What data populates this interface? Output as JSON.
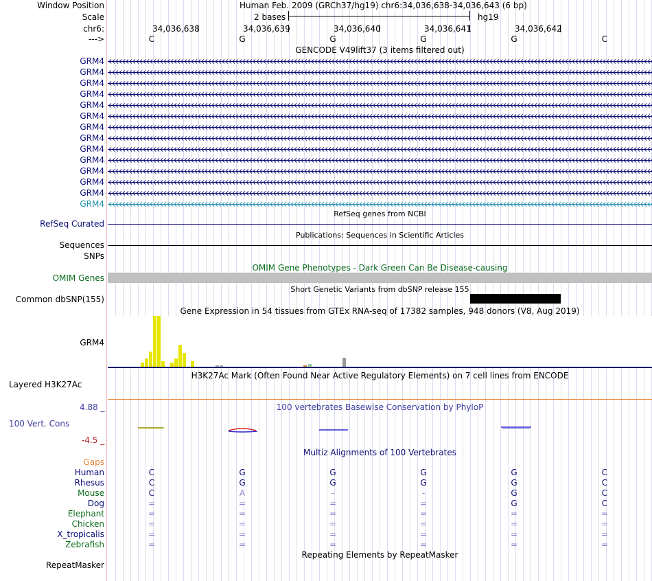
{
  "header": {
    "window_position_label": "Window Position",
    "scale_label": "Scale",
    "chrom_label": "chr6:",
    "strand_label": "--->",
    "assembly_title": "Human Feb. 2009 (GRCh37/hg19)   chr6:34,036,638-34,036,643 (6 bp)",
    "scale_text": "2 bases",
    "scale_db": "hg19",
    "positions": [
      "34,036,638",
      "34,036,639",
      "34,036,640",
      "34,036,641",
      "34,036,642"
    ],
    "bases": [
      "C",
      "G",
      "G",
      "G",
      "G",
      "C"
    ]
  },
  "gencode": {
    "title": "GENCODE V49lift37 (3 items filtered out)",
    "items": [
      "GRM4",
      "GRM4",
      "GRM4",
      "GRM4",
      "GRM4",
      "GRM4",
      "GRM4",
      "GRM4",
      "GRM4",
      "GRM4",
      "GRM4",
      "GRM4",
      "GRM4",
      "GRM4"
    ],
    "color": "#0c0c78",
    "last_color": "#1f8fb0"
  },
  "refseq": {
    "title": "RefSeq genes from NCBI",
    "label": "RefSeq Curated"
  },
  "pubs": {
    "title": "Publications: Sequences in Scientific Articles",
    "label": "Sequences"
  },
  "snps": {
    "label": "SNPs"
  },
  "omim": {
    "title": "OMIM Gene Phenotypes - Dark Green Can Be Disease-causing",
    "label": "OMIM Genes",
    "color": "#0c6c1c"
  },
  "dbsnp": {
    "title": "Short Genetic Variants from dbSNP release 155",
    "label": "Common dbSNP(155)"
  },
  "gtex": {
    "title": "Gene Expression in 54 tissues from GTEx RNA-seq of 17382 samples, 948 donors (V8, Aug 2019)",
    "label": "GRM4",
    "expression": [
      {
        "tissue_color": "#e6e600",
        "value": 6
      },
      {
        "tissue_color": "#e6e600",
        "value": 12
      },
      {
        "tissue_color": "#e6e600",
        "value": 22
      },
      {
        "tissue_color": "#e6e600",
        "value": 74
      },
      {
        "tissue_color": "#e6e600",
        "value": 74
      },
      {
        "tissue_color": "#e6e600",
        "value": 8
      },
      {
        "tissue_color": "#e6e600",
        "value": 6
      },
      {
        "tissue_color": "#e6e600",
        "value": 12
      },
      {
        "tissue_color": "#e6e600",
        "value": 32
      },
      {
        "tissue_color": "#e6e600",
        "value": 20
      },
      {
        "tissue_color": "#e6e600",
        "value": 8
      },
      {
        "tissue_color": "#aaaaaa",
        "value": 2
      },
      {
        "tissue_color": "#aaaaaa",
        "value": 2
      },
      {
        "tissue_color": "#cc8833",
        "value": 2
      },
      {
        "tissue_color": "#99cc99",
        "value": 4
      },
      {
        "tissue_color": "#999999",
        "value": 13
      }
    ]
  },
  "h3k27ac": {
    "title": "H3K27Ac Mark (Often Found Near Active Regulatory Elements) on 7 cell lines from ENCODE",
    "label": "Layered H3K27Ac"
  },
  "phylop": {
    "title": "100 vertebrates Basewise Conservation by PhyloP",
    "label": "100 Vert. Cons",
    "max_label": "4.88 _",
    "min_label": "-4.5 _"
  },
  "multiz": {
    "title": "Multiz Alignments of 100 Vertebrates",
    "gaps_label": "Gaps",
    "species": [
      {
        "name": "Human",
        "color": "#0c0c78",
        "bases": [
          "C",
          "G",
          "G",
          "G",
          "G",
          "C"
        ]
      },
      {
        "name": "Rhesus",
        "color": "#0c0c78",
        "bases": [
          "C",
          "G",
          "G",
          "G",
          "G",
          "C"
        ]
      },
      {
        "name": "Mouse",
        "color": "#0c6c1c",
        "bases": [
          "C",
          "A",
          "-",
          "-",
          "G",
          "C"
        ]
      },
      {
        "name": "Dog",
        "color": "#0c0c78",
        "bases": [
          "=",
          "=",
          "=",
          "=",
          "G",
          "C"
        ]
      },
      {
        "name": "Elephant",
        "color": "#0c6c1c",
        "bases": [
          "=",
          "=",
          "=",
          "=",
          "=",
          "="
        ]
      },
      {
        "name": "Chicken",
        "color": "#0c6c1c",
        "bases": [
          "=",
          "=",
          "=",
          "=",
          "=",
          "="
        ]
      },
      {
        "name": "X_tropicalis",
        "color": "#0c0c78",
        "bases": [
          "=",
          "=",
          "=",
          "=",
          "=",
          "="
        ]
      },
      {
        "name": "Zebrafish",
        "color": "#0c6c1c",
        "bases": [
          "=",
          "=",
          "=",
          "=",
          "=",
          "="
        ]
      }
    ]
  },
  "repeatmasker": {
    "title": "Repeating Elements by RepeatMasker",
    "label": "RepeatMasker"
  }
}
